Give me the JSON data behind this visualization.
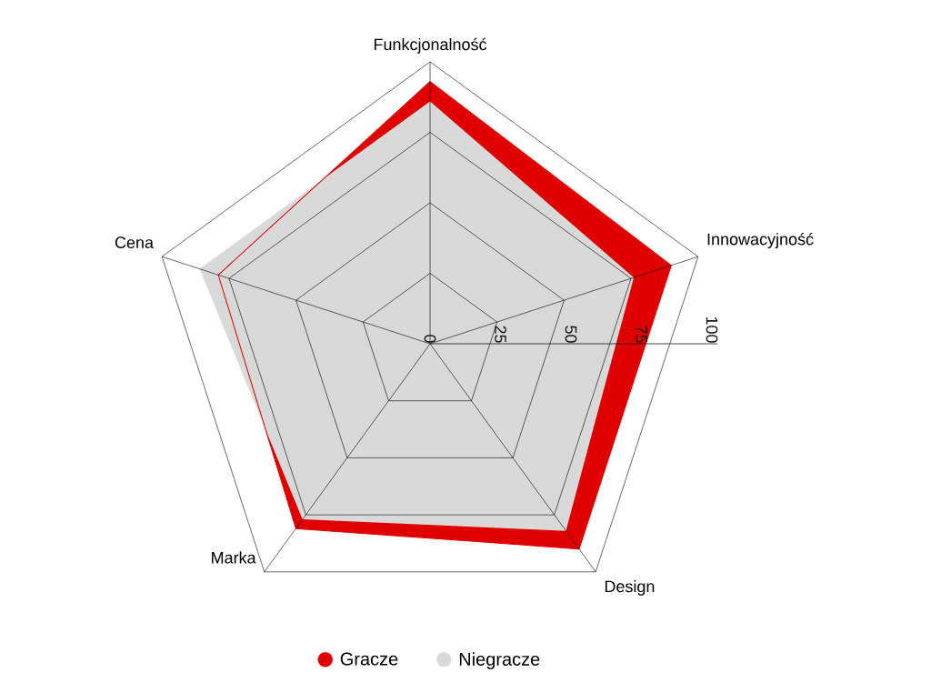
{
  "chart_data": {
    "type": "radar",
    "categories": [
      "Funkcjonalność",
      "Innowacyjność",
      "Design",
      "Marka",
      "Cena"
    ],
    "series": [
      {
        "name": "Gracze",
        "color": "#e00000",
        "values": [
          93,
          90,
          90,
          81,
          79
        ]
      },
      {
        "name": "Niegracze",
        "color": "#d9d9d9",
        "values": [
          86,
          76,
          82,
          77,
          86
        ]
      }
    ],
    "ylim": [
      0,
      100
    ],
    "yticks": [
      0,
      25,
      50,
      75,
      100
    ],
    "grid": true,
    "legend": "bottom"
  }
}
